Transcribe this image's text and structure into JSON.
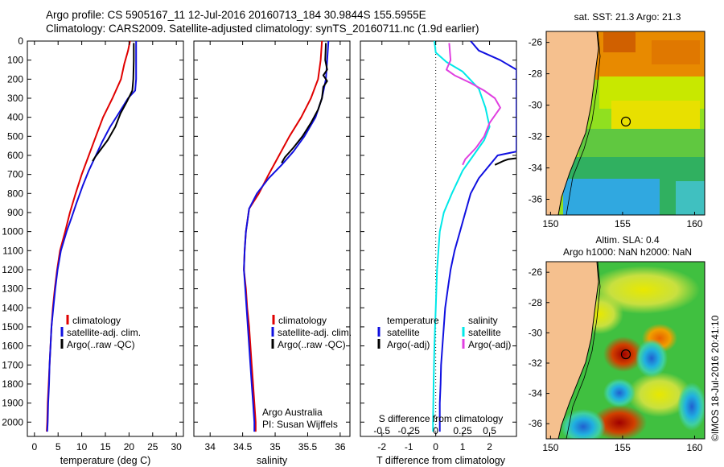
{
  "title": {
    "line1": "Argo profile: CS 5905167_11 12-Jul-2016 20160713_184 30.9844S 155.5955E",
    "line2": "Climatology: CARS2009. Satellite-adjusted climatology: synTS_20160711.nc (1.9d earlier)"
  },
  "colors": {
    "climatology": "#e00000",
    "satellite": "#1010e0",
    "argo": "#000000",
    "salinity_sat": "#00e8e8",
    "salinity_argo": "#e040e0",
    "land": "#f5c08e"
  },
  "chart_data": [
    {
      "id": "temperature",
      "type": "line",
      "xlabel": "temperature (deg C)",
      "xlim": [
        -1.5,
        31.5
      ],
      "xticks": [
        0,
        5,
        10,
        15,
        20,
        25,
        30
      ],
      "xtick_labels": [
        "0",
        "5",
        "10",
        "15",
        "20",
        "25",
        "30"
      ],
      "ylim": [
        0,
        2075
      ],
      "yticks": [
        0,
        100,
        200,
        300,
        400,
        500,
        600,
        700,
        800,
        900,
        1000,
        1100,
        1200,
        1300,
        1400,
        1500,
        1600,
        1700,
        1800,
        1900,
        2000
      ],
      "ytick_labels": [
        "0",
        "100",
        "200",
        "300",
        "400",
        "500",
        "600",
        "700",
        "800",
        "900",
        "1000",
        "1100",
        "1200",
        "1300",
        "1400",
        "1500",
        "1600",
        "1700",
        "1800",
        "1900",
        "2000"
      ],
      "legend": [
        "climatology",
        "satellite-adj. clim.",
        "Argo(..raw -QC)"
      ],
      "series": [
        {
          "name": "climatology",
          "color": "#e00000",
          "points": [
            [
              20.2,
              0
            ],
            [
              19.8,
              50
            ],
            [
              19.0,
              120
            ],
            [
              18.3,
              200
            ],
            [
              16.5,
              300
            ],
            [
              14.5,
              400
            ],
            [
              13.0,
              500
            ],
            [
              11.5,
              600
            ],
            [
              10.0,
              700
            ],
            [
              8.7,
              800
            ],
            [
              7.5,
              900
            ],
            [
              6.5,
              1000
            ],
            [
              5.4,
              1100
            ],
            [
              4.8,
              1200
            ],
            [
              4.3,
              1300
            ],
            [
              3.9,
              1400
            ],
            [
              3.6,
              1500
            ],
            [
              3.4,
              1600
            ],
            [
              3.2,
              1700
            ],
            [
              3.0,
              1800
            ],
            [
              2.8,
              1900
            ],
            [
              2.7,
              2000
            ],
            [
              2.6,
              2050
            ]
          ]
        },
        {
          "name": "satellite-adj. clim.",
          "color": "#1010e0",
          "points": [
            [
              21.5,
              0
            ],
            [
              21.5,
              100
            ],
            [
              21.5,
              200
            ],
            [
              21.3,
              260
            ],
            [
              19.8,
              300
            ],
            [
              17.8,
              380
            ],
            [
              16.0,
              450
            ],
            [
              14.3,
              530
            ],
            [
              13.0,
              600
            ],
            [
              11.5,
              680
            ],
            [
              10.2,
              760
            ],
            [
              8.9,
              850
            ],
            [
              7.8,
              930
            ],
            [
              6.8,
              1000
            ],
            [
              5.6,
              1100
            ],
            [
              4.9,
              1200
            ],
            [
              4.4,
              1300
            ],
            [
              4.0,
              1400
            ],
            [
              3.6,
              1500
            ],
            [
              3.4,
              1600
            ],
            [
              3.2,
              1700
            ],
            [
              3.1,
              1800
            ],
            [
              2.9,
              1900
            ],
            [
              2.8,
              2000
            ],
            [
              2.7,
              2050
            ]
          ]
        },
        {
          "name": "Argo(..raw -QC)",
          "color": "#000000",
          "points": [
            [
              21.0,
              10
            ],
            [
              21.0,
              100
            ],
            [
              20.9,
              200
            ],
            [
              20.7,
              260
            ],
            [
              19.5,
              320
            ],
            [
              18.2,
              380
            ],
            [
              17.1,
              450
            ],
            [
              15.5,
              520
            ],
            [
              14.0,
              570
            ],
            [
              12.8,
              610
            ],
            [
              12.3,
              630
            ]
          ]
        }
      ]
    },
    {
      "id": "salinity",
      "type": "line",
      "xlabel": "salinity",
      "xlim": [
        33.75,
        36.15
      ],
      "xticks": [
        34,
        34.5,
        35,
        35.5,
        36
      ],
      "xtick_labels": [
        "34",
        "34.5",
        "35",
        "35.5",
        "36"
      ],
      "ylim": [
        0,
        2075
      ],
      "legend": [
        "climatology",
        "satellite-adj. clim.",
        "Argo(..raw -QC)"
      ],
      "annotation": [
        "Argo Australia",
        "PI: Susan Wijffels"
      ],
      "series": [
        {
          "name": "climatology",
          "color": "#e00000",
          "points": [
            [
              35.72,
              0
            ],
            [
              35.7,
              100
            ],
            [
              35.66,
              200
            ],
            [
              35.55,
              300
            ],
            [
              35.4,
              400
            ],
            [
              35.22,
              500
            ],
            [
              35.06,
              600
            ],
            [
              34.9,
              700
            ],
            [
              34.75,
              800
            ],
            [
              34.6,
              880
            ],
            [
              34.55,
              1000
            ],
            [
              34.53,
              1100
            ],
            [
              34.52,
              1200
            ],
            [
              34.55,
              1300
            ],
            [
              34.57,
              1400
            ],
            [
              34.6,
              1500
            ],
            [
              34.62,
              1600
            ],
            [
              34.64,
              1700
            ],
            [
              34.66,
              1800
            ],
            [
              34.68,
              1900
            ],
            [
              34.7,
              2000
            ],
            [
              34.7,
              2050
            ]
          ]
        },
        {
          "name": "satellite-adj. clim.",
          "color": "#1010e0",
          "points": [
            [
              35.82,
              0
            ],
            [
              35.8,
              100
            ],
            [
              35.78,
              200
            ],
            [
              35.72,
              300
            ],
            [
              35.62,
              400
            ],
            [
              35.45,
              500
            ],
            [
              35.28,
              580
            ],
            [
              35.1,
              650
            ],
            [
              34.9,
              720
            ],
            [
              34.72,
              800
            ],
            [
              34.6,
              880
            ],
            [
              34.55,
              1000
            ],
            [
              34.53,
              1100
            ],
            [
              34.52,
              1200
            ],
            [
              34.54,
              1300
            ],
            [
              34.56,
              1400
            ],
            [
              34.58,
              1500
            ],
            [
              34.6,
              1600
            ],
            [
              34.62,
              1700
            ],
            [
              34.64,
              1800
            ],
            [
              34.66,
              1900
            ],
            [
              34.68,
              2000
            ],
            [
              34.68,
              2050
            ]
          ]
        },
        {
          "name": "Argo(..raw -QC)",
          "color": "#000000",
          "points": [
            [
              35.78,
              10
            ],
            [
              35.77,
              100
            ],
            [
              35.8,
              150
            ],
            [
              35.74,
              180
            ],
            [
              35.8,
              210
            ],
            [
              35.74,
              240
            ],
            [
              35.72,
              300
            ],
            [
              35.66,
              360
            ],
            [
              35.55,
              430
            ],
            [
              35.42,
              500
            ],
            [
              35.28,
              560
            ],
            [
              35.15,
              610
            ],
            [
              35.1,
              640
            ]
          ]
        }
      ]
    },
    {
      "id": "difference",
      "type": "line",
      "xlabel": "T difference from climatology",
      "xlim": [
        -2.8,
        3.0
      ],
      "xticks": [
        -2,
        -1,
        0,
        1,
        2
      ],
      "xtick_labels": [
        "-2",
        "-1",
        "0",
        "1",
        "2"
      ],
      "top_label": "S difference from climatology",
      "s_ticks": [
        -0.5,
        -0.25,
        0,
        0.25,
        0.5
      ],
      "s_tick_labels": [
        "-0.5",
        "-0.25",
        "0",
        "0.25",
        "0.5"
      ],
      "s_scale": 4,
      "ylim": [
        0,
        2075
      ],
      "legend_temperature": [
        "temperature",
        "satellite",
        "Argo(-adj)"
      ],
      "legend_salinity": [
        "salinity",
        "satellite",
        "Argo(-adj)"
      ],
      "series": [
        {
          "name": "temperature satellite",
          "color": "#1010e0",
          "points": [
            [
              1.3,
              0
            ],
            [
              1.6,
              50
            ],
            [
              2.4,
              100
            ],
            [
              3.0,
              150
            ],
            [
              3.0,
              580
            ],
            [
              2.3,
              600
            ],
            [
              1.6,
              720
            ],
            [
              1.3,
              800
            ],
            [
              1.1,
              900
            ],
            [
              0.9,
              1000
            ],
            [
              0.7,
              1100
            ],
            [
              0.55,
              1200
            ],
            [
              0.45,
              1300
            ],
            [
              0.35,
              1400
            ],
            [
              0.3,
              1500
            ],
            [
              0.25,
              1600
            ],
            [
              0.2,
              1700
            ],
            [
              0.18,
              1800
            ],
            [
              0.15,
              1900
            ],
            [
              0.15,
              2000
            ],
            [
              0.15,
              2050
            ]
          ]
        },
        {
          "name": "temperature Argo(-adj)",
          "color": "#000000",
          "points": [
            [
              2.2,
              650
            ],
            [
              2.5,
              630
            ],
            [
              2.7,
              620
            ],
            [
              3.0,
              615
            ]
          ]
        },
        {
          "name": "salinity satellite",
          "color": "#00e8e8",
          "points": [
            [
              -0.05,
              0
            ],
            [
              0.0,
              60
            ],
            [
              0.4,
              110
            ],
            [
              1.0,
              160
            ],
            [
              1.6,
              250
            ],
            [
              1.85,
              350
            ],
            [
              2.0,
              450
            ],
            [
              1.8,
              520
            ],
            [
              1.4,
              600
            ],
            [
              1.0,
              680
            ],
            [
              0.6,
              800
            ],
            [
              0.3,
              900
            ],
            [
              0.15,
              1000
            ],
            [
              0.05,
              1200
            ],
            [
              0.0,
              1400
            ],
            [
              -0.05,
              1600
            ],
            [
              -0.08,
              1800
            ],
            [
              -0.1,
              2000
            ],
            [
              -0.1,
              2050
            ]
          ]
        },
        {
          "name": "salinity Argo(-adj)",
          "color": "#e040e0",
          "points": [
            [
              0.5,
              10
            ],
            [
              0.55,
              100
            ],
            [
              0.4,
              150
            ],
            [
              0.7,
              180
            ],
            [
              1.3,
              220
            ],
            [
              1.8,
              260
            ],
            [
              2.2,
              300
            ],
            [
              2.4,
              350
            ],
            [
              2.0,
              430
            ],
            [
              1.8,
              500
            ],
            [
              1.5,
              560
            ],
            [
              1.1,
              620
            ],
            [
              1.0,
              650
            ]
          ]
        }
      ]
    }
  ],
  "maps": {
    "sst": {
      "title": "sat. SST: 21.3 Argo: 21.3",
      "lat_labels": [
        "-26",
        "-28",
        "-30",
        "-32",
        "-34",
        "-36"
      ],
      "lon_labels": [
        "150",
        "155",
        "160"
      ]
    },
    "sla": {
      "title_line1": "Altim. SLA: 0.4",
      "title_line2": "Argo h1000: NaN h2000: NaN",
      "lat_labels": [
        "-26",
        "-28",
        "-30",
        "-32",
        "-34",
        "-36"
      ],
      "lon_labels": [
        "150",
        "155",
        "160"
      ]
    }
  },
  "footer": "©IMOS 18-Jul-2016 20:41:10"
}
